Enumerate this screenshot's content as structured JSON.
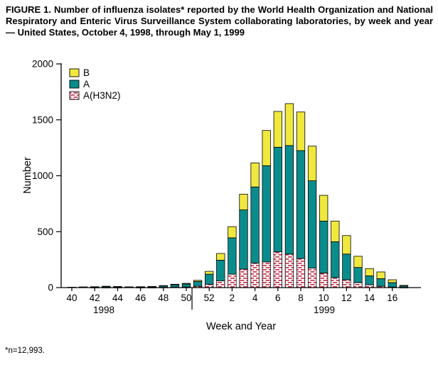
{
  "title": "FIGURE 1. Number of influenza isolates* reported by the World Health Organization and National Respiratory and Enteric Virus Surveillance System collaborating laboratories, by week and year — United States, October 4, 1998, through May 1, 1999",
  "footnote": "*n=12,993.",
  "chart_data": {
    "type": "bar",
    "stacked": true,
    "title": "",
    "xlabel": "Week and Year",
    "ylabel": "Number",
    "ylim": [
      0,
      2000
    ],
    "yticks": [
      0,
      500,
      1000,
      1500,
      2000
    ],
    "weeks": [
      40,
      41,
      42,
      43,
      44,
      45,
      46,
      47,
      48,
      49,
      50,
      51,
      52,
      1,
      2,
      3,
      4,
      5,
      6,
      7,
      8,
      9,
      10,
      11,
      12,
      13,
      14,
      15,
      16,
      17
    ],
    "xtick_labels": [
      40,
      42,
      44,
      46,
      48,
      50,
      52,
      2,
      4,
      6,
      8,
      10,
      12,
      14,
      16
    ],
    "year_labels": [
      "1998",
      "1999"
    ],
    "year_divider_after_week": 50,
    "legend": [
      "B",
      "A",
      "A(H3N2)"
    ],
    "legend_position": "top-left",
    "grid": false,
    "series": [
      {
        "name": "A(H3N2)",
        "fill": "hatch",
        "hatch_color": "#c9344e",
        "values": [
          0,
          0,
          1,
          1,
          1,
          0,
          1,
          1,
          2,
          5,
          6,
          12,
          30,
          60,
          120,
          165,
          220,
          230,
          320,
          300,
          260,
          175,
          130,
          90,
          70,
          45,
          25,
          12,
          5,
          1
        ]
      },
      {
        "name": "A",
        "fill": "#0b8c8c",
        "values": [
          4,
          5,
          6,
          9,
          7,
          5,
          6,
          7,
          13,
          20,
          26,
          43,
          90,
          185,
          325,
          530,
          680,
          860,
          935,
          970,
          965,
          780,
          465,
          320,
          230,
          135,
          80,
          68,
          40,
          13
        ]
      },
      {
        "name": "B",
        "fill": "#f0e83d",
        "values": [
          0,
          1,
          1,
          2,
          2,
          2,
          1,
          2,
          3,
          5,
          6,
          10,
          25,
          60,
          100,
          140,
          215,
          315,
          320,
          375,
          345,
          310,
          230,
          185,
          165,
          100,
          65,
          60,
          25,
          6
        ]
      }
    ]
  }
}
